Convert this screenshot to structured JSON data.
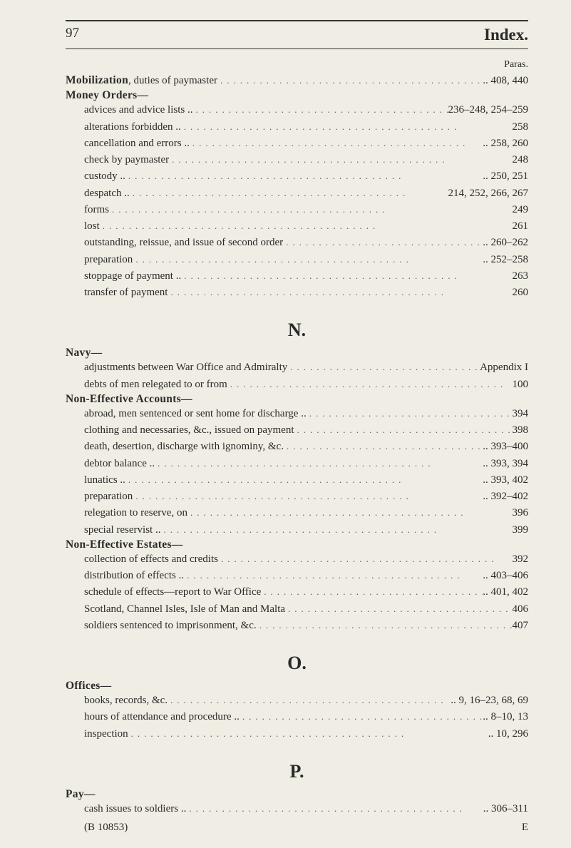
{
  "header": {
    "page_number": "97",
    "title": "Index."
  },
  "paras_label": "Paras.",
  "section_M": {
    "mobilization": {
      "label": "Mobilization",
      "tail": ", duties of paymaster",
      "ref": ".. 408, 440"
    },
    "money_orders_head": "Money Orders—",
    "items": [
      {
        "label": "advices and advice lists ..",
        "ref": "236–248, 254–259"
      },
      {
        "label": "alterations forbidden ..",
        "ref": "258"
      },
      {
        "label": "cancellation and errors ..",
        "ref": ".. 258, 260"
      },
      {
        "label": "check by paymaster",
        "ref": "248"
      },
      {
        "label": "custody ..",
        "ref": ".. 250, 251"
      },
      {
        "label": "despatch ..",
        "ref": "214, 252, 266, 267"
      },
      {
        "label": "forms",
        "ref": "249"
      },
      {
        "label": "lost",
        "ref": "261"
      },
      {
        "label": "outstanding, reissue, and issue of second order",
        "ref": ".. 260–262"
      },
      {
        "label": "preparation",
        "ref": ".. 252–258"
      },
      {
        "label": "stoppage of payment ..",
        "ref": "263"
      },
      {
        "label": "transfer of payment",
        "ref": "260"
      }
    ]
  },
  "section_N": {
    "letter": "N.",
    "navy_head": "Navy—",
    "navy_items": [
      {
        "label": "adjustments between War Office and Admiralty",
        "ref": "Appendix I"
      },
      {
        "label": "debts of men relegated to or from",
        "ref": "100"
      }
    ],
    "noneff_head": "Non-Effective Accounts—",
    "noneff_items": [
      {
        "label": "abroad, men sentenced or sent home for discharge ..",
        "ref": "394"
      },
      {
        "label": "clothing and necessaries, &c., issued on payment",
        "ref": "398"
      },
      {
        "label": "death, desertion, discharge with ignominy, &c.",
        "ref": ".. 393–400"
      },
      {
        "label": "debtor balance ..",
        "ref": ".. 393, 394"
      },
      {
        "label": "lunatics ..",
        "ref": ".. 393, 402"
      },
      {
        "label": "preparation",
        "ref": ".. 392–402"
      },
      {
        "label": "relegation to reserve, on",
        "ref": "396"
      },
      {
        "label": "special reservist ..",
        "ref": "399"
      }
    ],
    "noneffest_head": "Non-Effective Estates—",
    "noneffest_items": [
      {
        "label": "collection of effects and credits",
        "ref": "392"
      },
      {
        "label": "distribution of effects ..",
        "ref": ".. 403–406"
      },
      {
        "label": "schedule of effects—report to War Office",
        "ref": ".. 401, 402"
      },
      {
        "label": "Scotland, Channel Isles, Isle of Man and Malta",
        "ref": "406"
      },
      {
        "label": "soldiers sentenced to imprisonment, &c.",
        "ref": "407"
      }
    ]
  },
  "section_O": {
    "letter": "O.",
    "offices_head": "Offices—",
    "items": [
      {
        "label": "books, records, &c.",
        "ref": ".. 9, 16–23, 68, 69"
      },
      {
        "label": "hours of attendance and procedure ..",
        "ref": ".. 8–10, 13"
      },
      {
        "label": "inspection",
        "ref": ".. 10, 296"
      }
    ]
  },
  "section_P": {
    "letter": "P.",
    "pay_head": "Pay—",
    "items": [
      {
        "label": "cash issues to soldiers ..",
        "ref": ".. 306–311"
      }
    ]
  },
  "footer": {
    "sig": "(B 10853)",
    "sheet": "E"
  },
  "dots": ".........................................."
}
